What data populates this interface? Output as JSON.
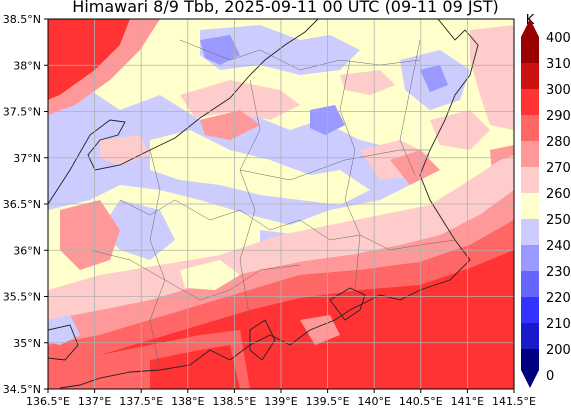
{
  "title": "Himawari 8/9 Tbb, 2025-09-11 00 UTC (09-11 09 JST)",
  "map": {
    "lon_range": [
      136.5,
      141.5
    ],
    "lat_range": [
      34.5,
      38.5
    ],
    "lon_ticks": [
      "136.5°E",
      "137°E",
      "137.5°E",
      "138°E",
      "138.5°E",
      "139°E",
      "139.5°E",
      "140°E",
      "140.5°E",
      "141°E",
      "141.5°E"
    ],
    "lat_ticks": [
      "34.5°N",
      "35°N",
      "35.5°N",
      "36°N",
      "36.5°N",
      "37°N",
      "37.5°N",
      "38°N",
      "38.5°N"
    ],
    "grid": true
  },
  "colorbar": {
    "unit": "K",
    "levels": [
      "0",
      "200",
      "210",
      "220",
      "230",
      "240",
      "250",
      "260",
      "270",
      "280",
      "290",
      "300",
      "310",
      "400"
    ],
    "colors": [
      "#1a1acc",
      "#3333ff",
      "#6666ff",
      "#9999ff",
      "#ccccff",
      "#ffffcc",
      "#ffcccc",
      "#ff9999",
      "#ff6666",
      "#ff3333",
      "#cc1111",
      "#990000"
    ],
    "extend_min_color": "#000080",
    "extend_max_color": "#990000"
  }
}
